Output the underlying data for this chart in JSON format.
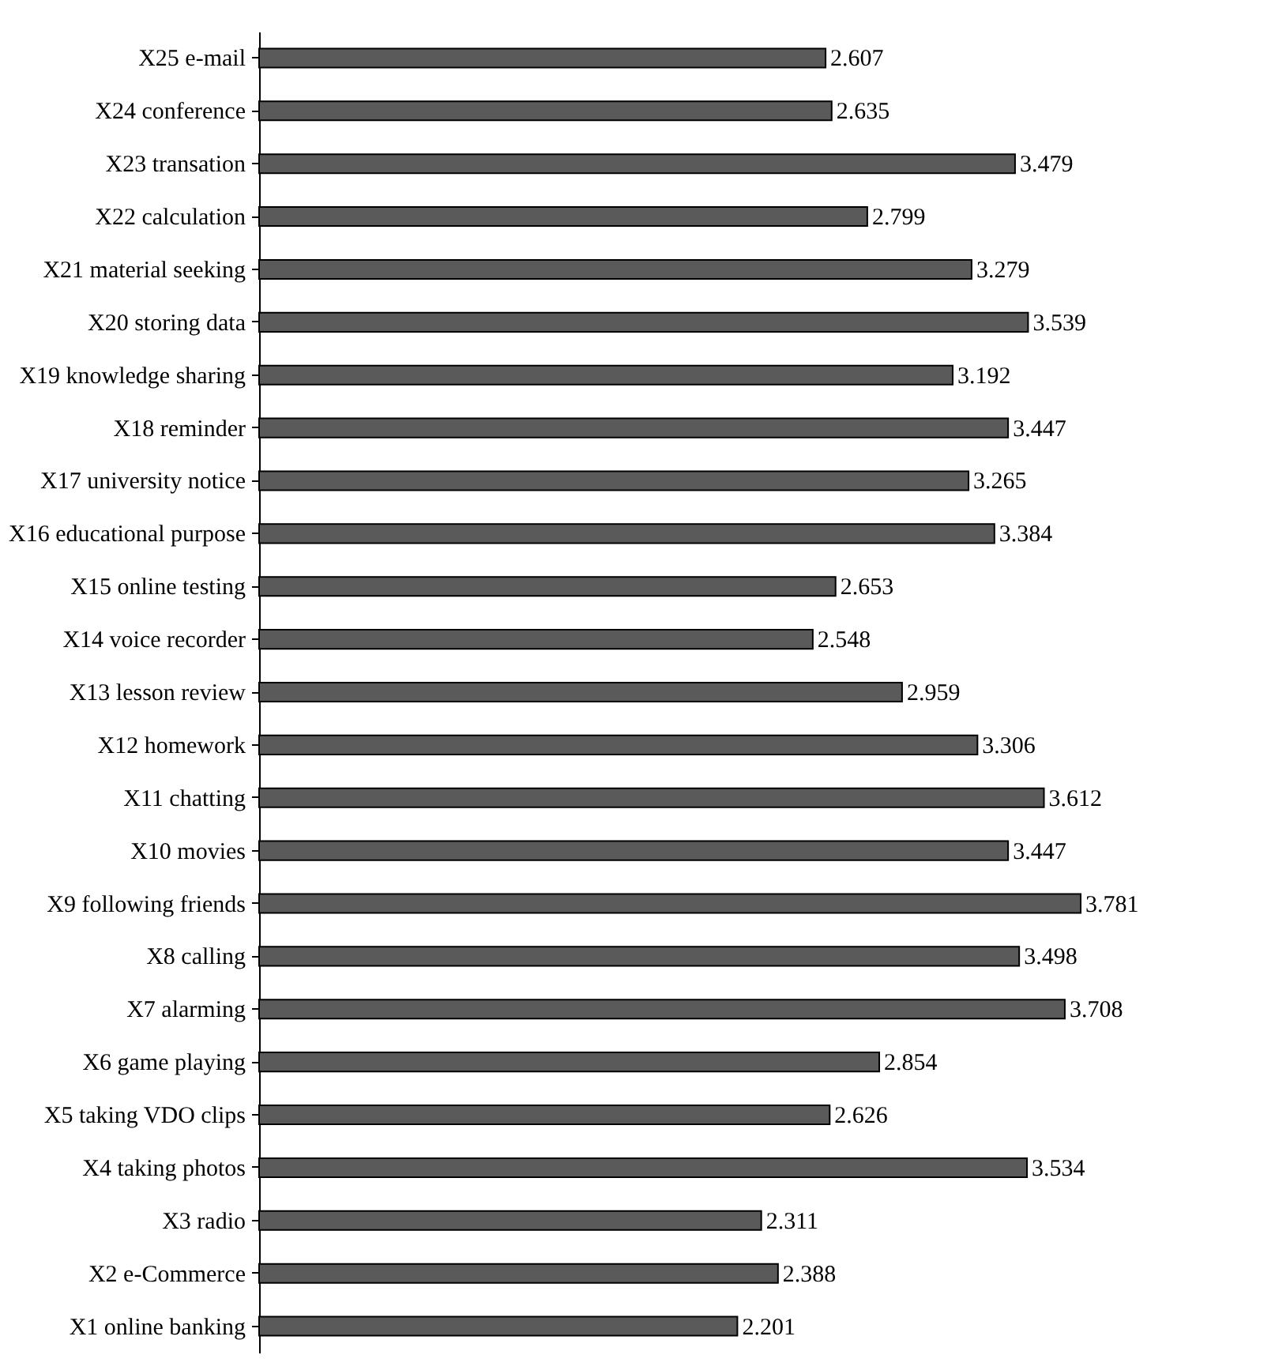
{
  "chart_data": {
    "type": "bar",
    "orientation": "horizontal",
    "data_labels": true,
    "color": "#5a5a5a",
    "tick_labels": "y",
    "grid": false,
    "categories": [
      "X25 e-mail",
      "X24 conference",
      "X23 transation",
      "X22 calculation",
      "X21 material seeking",
      "X20 storing data",
      "X19 knowledge sharing",
      "X18 reminder",
      "X17 university notice",
      "X16 educational purpose",
      "X15 online testing",
      "X14 voice recorder",
      "X13 lesson review",
      "X12 homework",
      "X11 chatting",
      "X10 movies",
      "X9 following friends",
      "X8 calling",
      "X7 alarming",
      "X6  game playing",
      "X5 taking VDO clips",
      "X4 taking photos",
      "X3 radio",
      "X2 e-Commerce",
      "X1 online banking"
    ],
    "values": [
      2.607,
      2.635,
      3.479,
      2.799,
      3.279,
      3.539,
      3.192,
      3.447,
      3.265,
      3.384,
      2.653,
      2.548,
      2.959,
      3.306,
      3.612,
      3.447,
      3.781,
      3.498,
      3.708,
      2.854,
      2.626,
      3.534,
      2.311,
      2.388,
      2.201
    ]
  }
}
